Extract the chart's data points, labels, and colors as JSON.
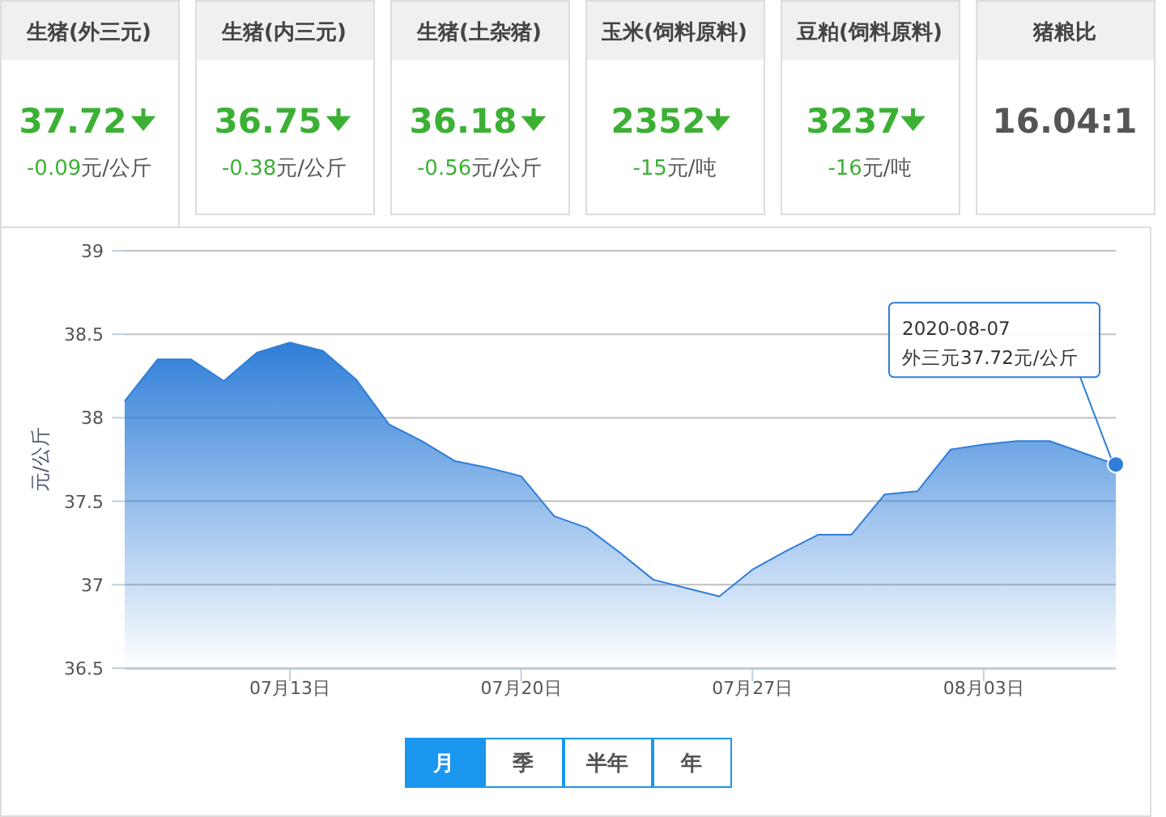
{
  "chart_data": [
    {
      "type": "other",
      "categories": [
        "生猪(外三元)",
        "生猪(内三元)",
        "生猪(土杂猪)",
        "玉米(饲料原料)",
        "豆粕(饲料原料)",
        "猪粮比"
      ],
      "value_labels": [
        "37.72",
        "36.75",
        "36.18",
        "2352",
        "3237",
        "16.04:1"
      ],
      "annotations": [
        "-0.09元/公斤",
        "-0.38元/公斤",
        "-0.56元/公斤",
        "-15元/吨",
        "-16元/吨"
      ]
    },
    {
      "type": "area",
      "ylabel": "元/公斤",
      "x": [
        "2020-07-08",
        "2020-07-09",
        "2020-07-10",
        "2020-07-11",
        "2020-07-12",
        "2020-07-13",
        "2020-07-14",
        "2020-07-15",
        "2020-07-16",
        "2020-07-17",
        "2020-07-18",
        "2020-07-19",
        "2020-07-20",
        "2020-07-21",
        "2020-07-22",
        "2020-07-23",
        "2020-07-24",
        "2020-07-25",
        "2020-07-26",
        "2020-07-27",
        "2020-07-28",
        "2020-07-29",
        "2020-07-30",
        "2020-07-31",
        "2020-08-01",
        "2020-08-02",
        "2020-08-03",
        "2020-08-04",
        "2020-08-05",
        "2020-08-06",
        "2020-08-07"
      ],
      "series": [
        {
          "color": "#2f7ed8",
          "values": [
            38.1,
            38.35,
            38.35,
            38.22,
            38.39,
            38.45,
            38.4,
            38.23,
            37.96,
            37.86,
            37.74,
            37.7,
            37.65,
            37.41,
            37.34,
            37.19,
            37.03,
            36.98,
            36.93,
            37.09,
            37.2,
            37.3,
            37.3,
            37.54,
            37.56,
            37.81,
            37.84,
            37.86,
            37.86,
            37.79,
            37.72
          ]
        }
      ],
      "xlim": [
        "2020-07-08",
        "2020-08-07"
      ],
      "xticks": [
        {
          "value": "2020-07-13",
          "label": "07月13日"
        },
        {
          "value": "2020-07-20",
          "label": "07月20日"
        },
        {
          "value": "2020-07-27",
          "label": "07月27日"
        },
        {
          "value": "2020-08-03",
          "label": "08月03日"
        }
      ],
      "ylim": [
        36.5,
        39
      ],
      "yticks": [
        36.5,
        37,
        37.5,
        38,
        38.5,
        39
      ],
      "grid": "y",
      "annotations": [
        {
          "text": "2020-08-07\n外三元37.72元/公斤",
          "x": "2020-08-07",
          "y": 37.72
        },
        "月",
        "季",
        "半年",
        "年"
      ]
    }
  ]
}
